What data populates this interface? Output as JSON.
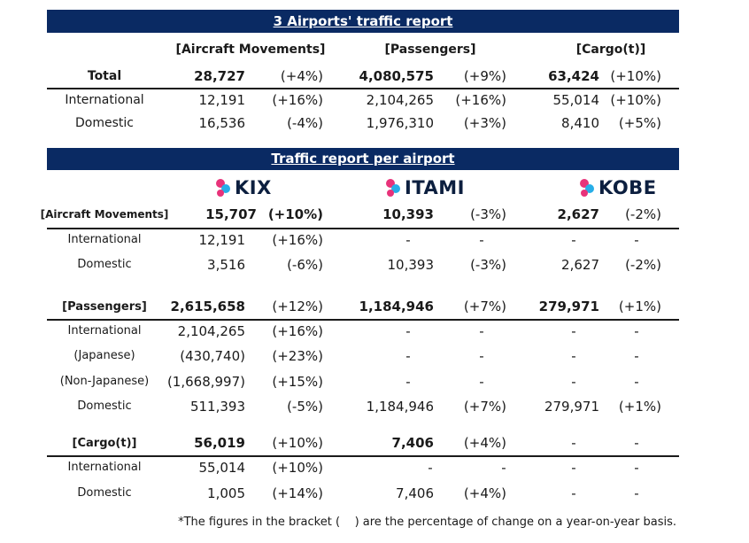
{
  "summary": {
    "title": "3 Airports' traffic report",
    "headers": {
      "aircraft": "[Aircraft Movements]",
      "passengers": "[Passengers]",
      "cargo": "[Cargo(t)]"
    },
    "rows": [
      {
        "label": "Total",
        "aircraft": "28,727",
        "aircraft_pct": "(+4%)",
        "passengers": "4,080,575",
        "passengers_pct": "(+9%)",
        "cargo": "63,424",
        "cargo_pct": "(+10%)"
      },
      {
        "label": "International",
        "aircraft": "12,191",
        "aircraft_pct": "(+16%)",
        "passengers": "2,104,265",
        "passengers_pct": "(+16%)",
        "cargo": "55,014",
        "cargo_pct": "(+10%)"
      },
      {
        "label": "Domestic",
        "aircraft": "16,536",
        "aircraft_pct": "(-4%)",
        "passengers": "1,976,310",
        "passengers_pct": "(+3%)",
        "cargo": "8,410",
        "cargo_pct": "(+5%)"
      }
    ]
  },
  "per_airport": {
    "title": "Traffic report per airport",
    "logos": {
      "kix": "KIX",
      "itami": "ITAMI",
      "kobe": "KOBE"
    },
    "logo_colors": {
      "pink": "#e8337a",
      "blue": "#27aee8",
      "navy": "#0c1f3f"
    },
    "aircraft": {
      "header": "[Aircraft Movements]",
      "total": {
        "kix": "15,707",
        "kix_pct": "(+10%)",
        "itami": "10,393",
        "itami_pct": "(-3%)",
        "kobe": "2,627",
        "kobe_pct": "(-2%)"
      },
      "rows": [
        {
          "label": "International",
          "kix": "12,191",
          "kix_pct": "(+16%)",
          "itami": "-",
          "itami_pct": "-",
          "kobe": "-",
          "kobe_pct": "-"
        },
        {
          "label": "Domestic",
          "kix": "3,516",
          "kix_pct": "(-6%)",
          "itami": "10,393",
          "itami_pct": "(-3%)",
          "kobe": "2,627",
          "kobe_pct": "(-2%)"
        }
      ]
    },
    "passengers": {
      "header": "[Passengers]",
      "total": {
        "kix": "2,615,658",
        "kix_pct": "(+12%)",
        "itami": "1,184,946",
        "itami_pct": "(+7%)",
        "kobe": "279,971",
        "kobe_pct": "(+1%)"
      },
      "rows": [
        {
          "label": "International",
          "kix": "2,104,265",
          "kix_pct": "(+16%)",
          "itami": "-",
          "itami_pct": "-",
          "kobe": "-",
          "kobe_pct": "-"
        },
        {
          "label": "(Japanese)",
          "kix": "(430,740)",
          "kix_pct": "(+23%)",
          "itami": "-",
          "itami_pct": "-",
          "kobe": "-",
          "kobe_pct": "-"
        },
        {
          "label": "(Non-Japanese)",
          "kix": "(1,668,997)",
          "kix_pct": "(+15%)",
          "itami": "-",
          "itami_pct": "-",
          "kobe": "-",
          "kobe_pct": "-"
        },
        {
          "label": "Domestic",
          "kix": "511,393",
          "kix_pct": "(-5%)",
          "itami": "1,184,946",
          "itami_pct": "(+7%)",
          "kobe": "279,971",
          "kobe_pct": "(+1%)"
        }
      ]
    },
    "cargo": {
      "header": "[Cargo(t)]",
      "total": {
        "kix": "56,019",
        "kix_pct": "(+10%)",
        "itami": "7,406",
        "itami_pct": "(+4%)",
        "kobe": "-",
        "kobe_pct": "-"
      },
      "rows": [
        {
          "label": "International",
          "kix": "55,014",
          "kix_pct": "(+10%)",
          "itami": "-",
          "itami_pct": "-",
          "kobe": "-",
          "kobe_pct": "-"
        },
        {
          "label": "Domestic",
          "kix": "1,005",
          "kix_pct": "(+14%)",
          "itami": "7,406",
          "itami_pct": "(+4%)",
          "kobe": "-",
          "kobe_pct": "-"
        }
      ]
    },
    "footnote": "*The figures in the bracket (    ) are the percentage of change on a year-on-year basis."
  }
}
